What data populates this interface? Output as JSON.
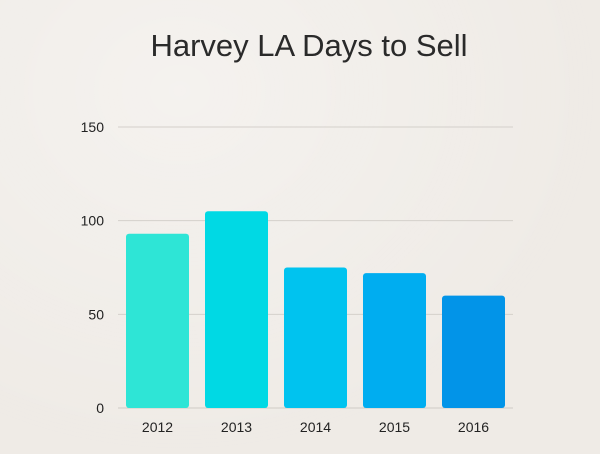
{
  "chart_data": {
    "type": "bar",
    "title": "Harvey LA Days to Sell",
    "categories": [
      "2012",
      "2013",
      "2014",
      "2015",
      "2016"
    ],
    "values": [
      93,
      105,
      75,
      72,
      60
    ],
    "ylim": [
      0,
      150
    ],
    "yticks": [
      0,
      50,
      100,
      150
    ],
    "grid": true,
    "colors": [
      "#2ee5d6",
      "#00d9e4",
      "#00c3ef",
      "#00adf0",
      "#0294e8"
    ]
  }
}
